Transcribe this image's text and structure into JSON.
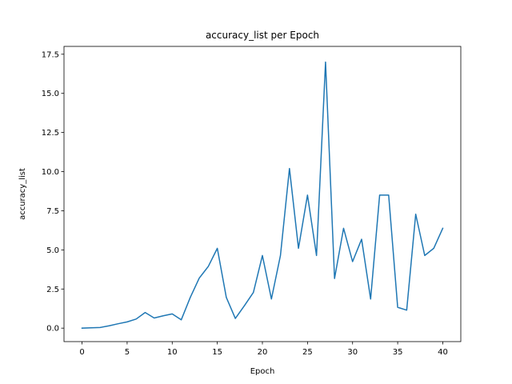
{
  "chart_data": {
    "type": "line",
    "title": "accuracy_list per Epoch",
    "xlabel": "Epoch",
    "ylabel": "accuracy_list",
    "xlim": [
      -2,
      42
    ],
    "ylim": [
      -0.86,
      18.0
    ],
    "xticks": [
      0,
      5,
      10,
      15,
      20,
      25,
      30,
      35,
      40
    ],
    "xtick_labels": [
      "0",
      "5",
      "10",
      "15",
      "20",
      "25",
      "30",
      "35",
      "40"
    ],
    "yticks": [
      0,
      2.5,
      5,
      7.5,
      10,
      12.5,
      15,
      17.5
    ],
    "ytick_labels": [
      "0.0",
      "2.5",
      "5.0",
      "7.5",
      "10.0",
      "12.5",
      "15.0",
      "17.5"
    ],
    "grid": false,
    "series": [
      {
        "color": "#1f77b4",
        "x": [
          0,
          1,
          2,
          3,
          4,
          5,
          6,
          7,
          8,
          9,
          10,
          11,
          12,
          13,
          14,
          15,
          16,
          17,
          18,
          19,
          20,
          21,
          22,
          23,
          24,
          25,
          26,
          27,
          28,
          29,
          30,
          31,
          32,
          33,
          34,
          35,
          36,
          37,
          38,
          39,
          40
        ],
        "values": [
          0.0,
          0.02,
          0.04,
          0.15,
          0.28,
          0.4,
          0.58,
          1.0,
          0.65,
          0.79,
          0.91,
          0.53,
          1.96,
          3.2,
          3.94,
          5.1,
          1.96,
          0.62,
          1.43,
          2.28,
          4.64,
          1.86,
          4.64,
          10.2,
          5.1,
          8.5,
          4.64,
          17.0,
          3.17,
          6.38,
          4.25,
          5.68,
          1.86,
          8.5,
          8.5,
          1.33,
          1.15,
          7.28,
          4.64,
          5.1,
          6.38
        ]
      }
    ]
  }
}
